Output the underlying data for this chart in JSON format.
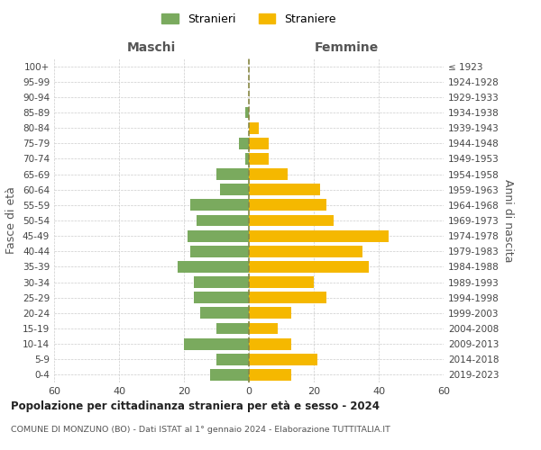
{
  "age_groups": [
    "0-4",
    "5-9",
    "10-14",
    "15-19",
    "20-24",
    "25-29",
    "30-34",
    "35-39",
    "40-44",
    "45-49",
    "50-54",
    "55-59",
    "60-64",
    "65-69",
    "70-74",
    "75-79",
    "80-84",
    "85-89",
    "90-94",
    "95-99",
    "100+"
  ],
  "birth_years": [
    "2019-2023",
    "2014-2018",
    "2009-2013",
    "2004-2008",
    "1999-2003",
    "1994-1998",
    "1989-1993",
    "1984-1988",
    "1979-1983",
    "1974-1978",
    "1969-1973",
    "1964-1968",
    "1959-1963",
    "1954-1958",
    "1949-1953",
    "1944-1948",
    "1939-1943",
    "1934-1938",
    "1929-1933",
    "1924-1928",
    "≤ 1923"
  ],
  "males": [
    12,
    10,
    20,
    10,
    15,
    17,
    17,
    22,
    18,
    19,
    16,
    18,
    9,
    10,
    1,
    3,
    0,
    1,
    0,
    0,
    0
  ],
  "females": [
    13,
    21,
    13,
    9,
    13,
    24,
    20,
    37,
    35,
    43,
    26,
    24,
    22,
    12,
    6,
    6,
    3,
    0,
    0,
    0,
    0
  ],
  "male_color": "#7aaa5e",
  "female_color": "#f5b800",
  "background_color": "#ffffff",
  "grid_color": "#cccccc",
  "dashed_line_color": "#888844",
  "title": "Popolazione per cittadinanza straniera per età e sesso - 2024",
  "subtitle": "COMUNE DI MONZUNO (BO) - Dati ISTAT al 1° gennaio 2024 - Elaborazione TUTTITALIA.IT",
  "legend_stranieri": "Stranieri",
  "legend_straniere": "Straniere",
  "maschi_label": "Maschi",
  "femmine_label": "Femmine",
  "fasce_eta_label": "Fasce di età",
  "anni_nascita_label": "Anni di nascita",
  "xlim": 60
}
